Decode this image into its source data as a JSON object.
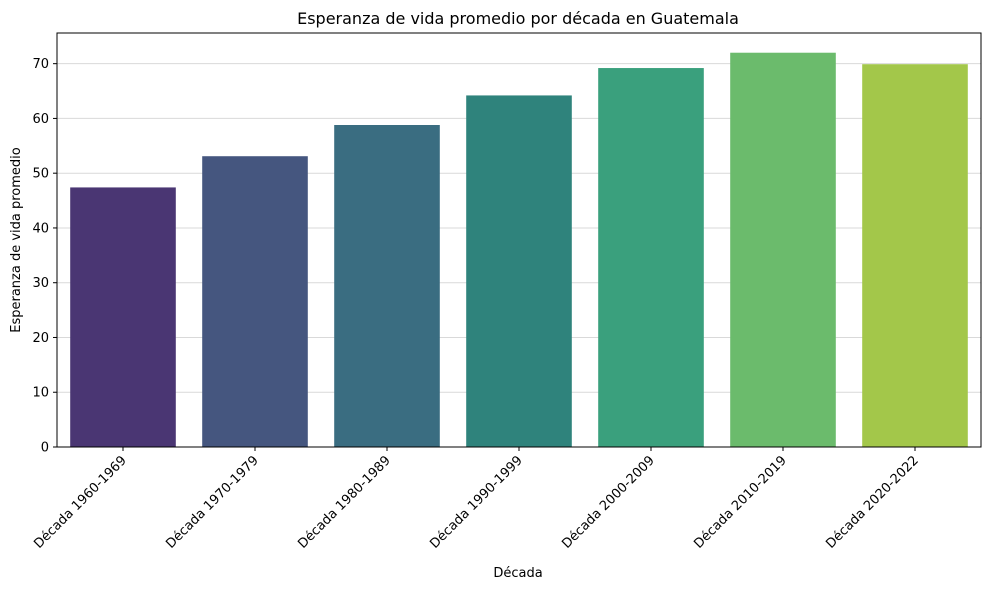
{
  "chart_data": {
    "type": "bar",
    "title": "Esperanza de vida promedio por década en Guatemala",
    "xlabel": "Década",
    "ylabel": "Esperanza de vida promedio",
    "categories": [
      "Década 1960-1969",
      "Década 1970-1979",
      "Década 1980-1989",
      "Década 1990-1999",
      "Década 2000-2009",
      "Década 2010-2019",
      "Década 2020-2022"
    ],
    "values": [
      47.4,
      53.1,
      58.8,
      64.2,
      69.2,
      72.0,
      69.9
    ],
    "colors": [
      "#4a3673",
      "#45567f",
      "#3a6d81",
      "#2f837c",
      "#3aa07d",
      "#6bbb6c",
      "#a3c74a"
    ],
    "ylim": [
      0,
      75.6
    ],
    "yticks": [
      0,
      10,
      20,
      30,
      40,
      50,
      60,
      70
    ],
    "grid": "horizontal",
    "legend": "none"
  }
}
